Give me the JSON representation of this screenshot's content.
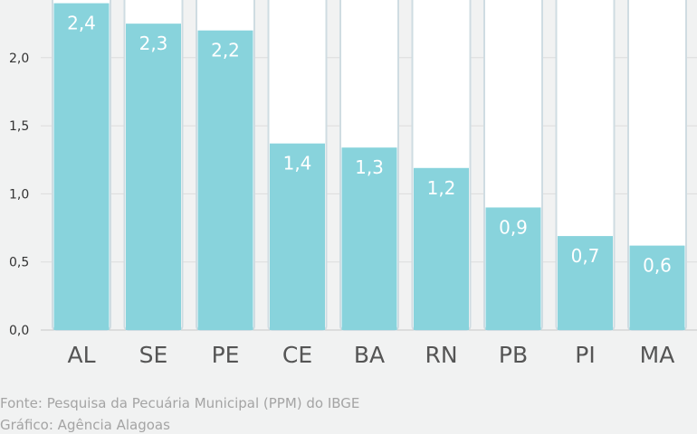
{
  "chart_data": {
    "type": "bar",
    "title": "",
    "xlabel": "",
    "ylabel": "",
    "categories": [
      "AL",
      "SE",
      "PE",
      "CE",
      "BA",
      "RN",
      "PB",
      "PI",
      "MA"
    ],
    "values": [
      2.4,
      2.25,
      2.2,
      1.37,
      1.34,
      1.19,
      0.9,
      0.69,
      0.62
    ],
    "data_labels": [
      "2,4",
      "2,3",
      "2,2",
      "1,4",
      "1,3",
      "1,2",
      "0,9",
      "0,7",
      "0,6"
    ],
    "yticks": [
      0.0,
      0.5,
      1.0,
      1.5,
      2.0
    ],
    "ytick_labels": [
      "0,0",
      "0,5",
      "1,0",
      "1,5",
      "2,0"
    ],
    "ylim": [
      0,
      2.42
    ],
    "grid": true,
    "colors": {
      "bar": "#88d3dc",
      "track": "#ffffff",
      "track_border": "#cfdce2",
      "grid": "#dcdcdc",
      "data_label": "#ffffff",
      "tick_label": "#333333",
      "category_label": "#555555"
    }
  },
  "footer": {
    "source": "Fonte: Pesquisa da Pecuária Municipal (PPM) do IBGE",
    "credit": "Gráfico: Agência Alagoas"
  }
}
